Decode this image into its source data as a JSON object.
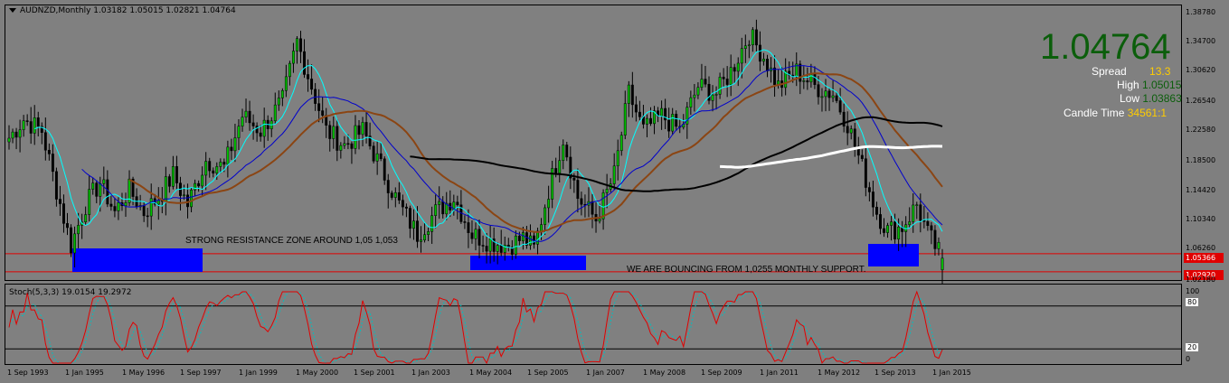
{
  "chart_title": "AUDNZD,Monthly  1.03182 1.05015 1.02821 1.04764",
  "stoch_title": "Stoch(5,3,3) 19.0154 19.2972",
  "big_price": "1.04764",
  "info": {
    "spread_label": "Spread",
    "spread_value": "13.3",
    "high_label": "High",
    "high_value": "1.05015",
    "low_label": "Low",
    "low_value": "1.03863",
    "candle_label": "Candle Time",
    "candle_value": "34561:1"
  },
  "annotations": {
    "resistance": "STRONG RESISTANCE ZONE AROUND 1,05 1,053",
    "support": "WE ARE BOUNCING FROM 1,0255 MONTHLY SUPPORT."
  },
  "price_labels": [
    "1.05366",
    "1.02920"
  ],
  "y_ticks": [
    "1.38780",
    "1.34700",
    "1.30620",
    "1.26540",
    "1.22580",
    "1.18500",
    "1.14420",
    "1.10340",
    "1.06260",
    "1.02180"
  ],
  "stoch_ticks": [
    "100",
    "80",
    "20",
    "0"
  ],
  "x_ticks": [
    "1 Sep 1993",
    "1 Jan 1995",
    "1 May 1996",
    "1 Sep 1997",
    "1 Jan 1999",
    "1 May 2000",
    "1 Sep 2001",
    "1 Jan 2003",
    "1 May 2004",
    "1 Sep 2005",
    "1 Jan 2007",
    "1 May 2008",
    "1 Sep 2009",
    "1 Jan 2011",
    "1 May 2012",
    "1 Sep 2013",
    "1 Jan 2015"
  ],
  "colors": {
    "background": "#808080",
    "bull_candle": "#00c000",
    "bear_candle": "#000000",
    "ma_fast": "#00ffff",
    "ma_mid": "#0000cc",
    "ma_slow": "#8b4513",
    "ma_long": "#000000",
    "ma_white": "#ffffff",
    "zone": "#0000ff",
    "level_line": "#e00000",
    "stoch_main": "#e00000",
    "stoch_signal": "#00c0c0"
  },
  "chart_data": {
    "type": "candlestick",
    "symbol": "AUDNZD",
    "timeframe": "Monthly",
    "last": {
      "open": 1.03182,
      "high": 1.05015,
      "low": 1.02821,
      "close": 1.04764
    },
    "ylim": [
      1.0218,
      1.3878
    ],
    "levels": [
      1.05366,
      1.0292
    ],
    "stoch": {
      "params": "5,3,3",
      "main": 19.0154,
      "signal": 19.2972,
      "levels": [
        80,
        20
      ],
      "ylim": [
        0,
        100
      ]
    },
    "x_range": [
      "1993-09",
      "2015-01"
    ],
    "waypoints": [
      [
        "1993-09",
        1.21
      ],
      [
        "1994-01",
        1.235
      ],
      [
        "1994-06",
        1.22
      ],
      [
        "1994-10",
        1.14
      ],
      [
        "1995-02",
        1.065
      ],
      [
        "1995-06",
        1.12
      ],
      [
        "1995-10",
        1.15
      ],
      [
        "1996-02",
        1.11
      ],
      [
        "1996-06",
        1.14
      ],
      [
        "1996-10",
        1.11
      ],
      [
        "1997-02",
        1.13
      ],
      [
        "1997-06",
        1.16
      ],
      [
        "1997-10",
        1.12
      ],
      [
        "1998-03",
        1.18
      ],
      [
        "1998-08",
        1.17
      ],
      [
        "1999-01",
        1.24
      ],
      [
        "1999-06",
        1.22
      ],
      [
        "1999-12",
        1.26
      ],
      [
        "2000-04",
        1.34
      ],
      [
        "2000-08",
        1.28
      ],
      [
        "2000-12",
        1.22
      ],
      [
        "2001-05",
        1.2
      ],
      [
        "2001-10",
        1.22
      ],
      [
        "2002-03",
        1.17
      ],
      [
        "2002-08",
        1.12
      ],
      [
        "2003-01",
        1.08
      ],
      [
        "2003-06",
        1.11
      ],
      [
        "2003-11",
        1.13
      ],
      [
        "2004-04",
        1.08
      ],
      [
        "2004-09",
        1.07
      ],
      [
        "2005-02",
        1.065
      ],
      [
        "2005-06",
        1.075
      ],
      [
        "2005-09",
        1.06
      ],
      [
        "2006-01",
        1.14
      ],
      [
        "2006-05",
        1.21
      ],
      [
        "2006-09",
        1.13
      ],
      [
        "2007-02",
        1.1
      ],
      [
        "2007-07",
        1.16
      ],
      [
        "2007-11",
        1.27
      ],
      [
        "2008-03",
        1.22
      ],
      [
        "2008-08",
        1.24
      ],
      [
        "2009-01",
        1.22
      ],
      [
        "2009-06",
        1.28
      ],
      [
        "2009-11",
        1.27
      ],
      [
        "2010-03",
        1.3
      ],
      [
        "2010-08",
        1.35
      ],
      [
        "2010-12",
        1.32
      ],
      [
        "2011-04",
        1.28
      ],
      [
        "2011-09",
        1.3
      ],
      [
        "2012-02",
        1.28
      ],
      [
        "2012-07",
        1.27
      ],
      [
        "2012-11",
        1.23
      ],
      [
        "2013-03",
        1.17
      ],
      [
        "2013-07",
        1.11
      ],
      [
        "2013-10",
        1.085
      ],
      [
        "2014-02",
        1.09
      ],
      [
        "2014-06",
        1.12
      ],
      [
        "2014-09",
        1.08
      ],
      [
        "2015-01",
        1.04764
      ]
    ]
  }
}
